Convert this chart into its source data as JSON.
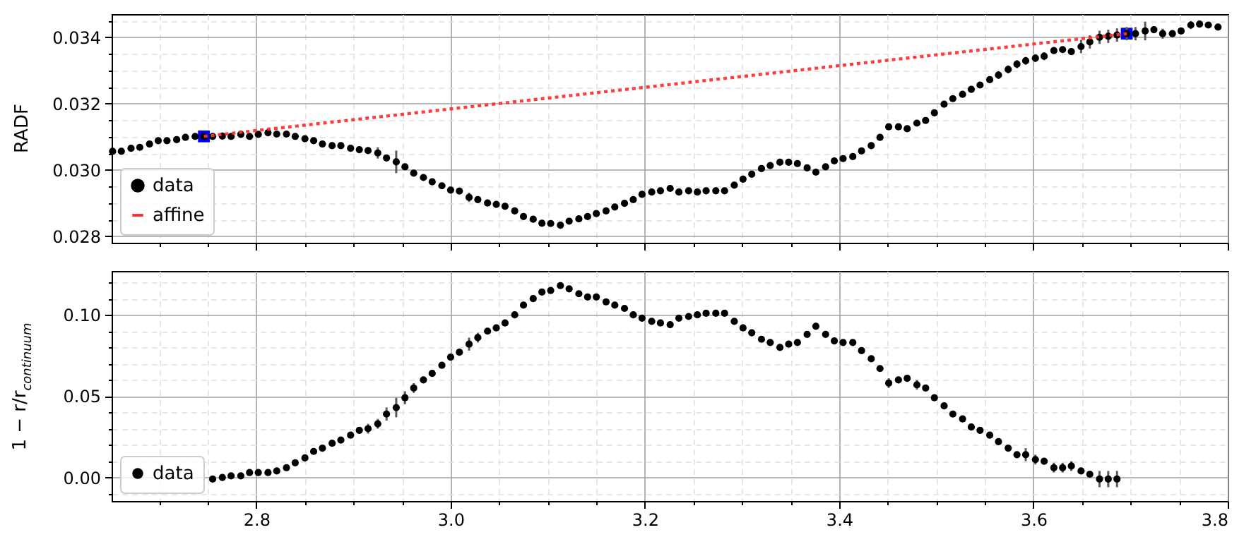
{
  "chart_data": [
    {
      "type": "scatter",
      "ylabel": "RADF",
      "xlim": [
        2.651,
        3.8
      ],
      "ylim": [
        0.0278,
        0.0347
      ],
      "xticks": [
        {
          "value": 2.7,
          "label": null
        },
        {
          "value": 2.75,
          "label": null
        },
        2.8,
        {
          "value": 2.85,
          "label": null
        },
        {
          "value": 2.9,
          "label": null
        },
        {
          "value": 2.95,
          "label": null
        },
        3,
        {
          "value": 3.05,
          "label": null
        },
        {
          "value": 3.1,
          "label": null
        },
        {
          "value": 3.15,
          "label": null
        },
        3.2,
        {
          "value": 3.25,
          "label": null
        },
        {
          "value": 3.3,
          "label": null
        },
        {
          "value": 3.35,
          "label": null
        },
        3.4,
        {
          "value": 3.45,
          "label": null
        },
        {
          "value": 3.5,
          "label": null
        },
        {
          "value": 3.55,
          "label": null
        },
        3.6,
        {
          "value": 3.65,
          "label": null
        },
        {
          "value": 3.7,
          "label": null
        },
        {
          "value": 3.75,
          "label": null
        },
        3.8
      ],
      "yticks": [
        0.028,
        {
          "value": 0.0285,
          "label": null
        },
        {
          "value": 0.029,
          "label": null
        },
        {
          "value": 0.0295,
          "label": null
        },
        {
          "value": 0.03,
          "label": "0.030"
        },
        {
          "value": 0.0305,
          "label": null
        },
        {
          "value": 0.031,
          "label": null
        },
        {
          "value": 0.0315,
          "label": null
        },
        0.032,
        {
          "value": 0.0325,
          "label": null
        },
        {
          "value": 0.033,
          "label": null
        },
        {
          "value": 0.0335,
          "label": null
        },
        0.034,
        {
          "value": 0.0345,
          "label": null
        }
      ],
      "tick_labels": "y",
      "grid": true,
      "legend": "bottom left",
      "series": [
        {
          "name": "data",
          "color": "#000000",
          "marker": "circle",
          "x": [
            2.652,
            2.661,
            2.671,
            2.68,
            2.69,
            2.699,
            2.708,
            2.718,
            2.727,
            2.737,
            2.746,
            2.755,
            2.765,
            2.774,
            2.784,
            2.793,
            2.802,
            2.812,
            2.821,
            2.831,
            2.84,
            2.85,
            2.859,
            2.868,
            2.878,
            2.887,
            2.897,
            2.906,
            2.915,
            2.925,
            2.934,
            2.944,
            2.953,
            2.962,
            2.972,
            2.981,
            2.991,
            3.0,
            3.009,
            3.019,
            3.028,
            3.038,
            3.047,
            3.056,
            3.066,
            3.075,
            3.085,
            3.094,
            3.103,
            3.113,
            3.122,
            3.132,
            3.141,
            3.15,
            3.16,
            3.169,
            3.179,
            3.188,
            3.197,
            3.207,
            3.216,
            3.226,
            3.235,
            3.245,
            3.254,
            3.263,
            3.273,
            3.282,
            3.292,
            3.301,
            3.31,
            3.32,
            3.329,
            3.339,
            3.348,
            3.357,
            3.367,
            3.376,
            3.386,
            3.395,
            3.404,
            3.414,
            3.423,
            3.433,
            3.442,
            3.451,
            3.461,
            3.47,
            3.48,
            3.489,
            3.498,
            3.508,
            3.517,
            3.527,
            3.536,
            3.545,
            3.555,
            3.564,
            3.574,
            3.583,
            3.592,
            3.602,
            3.611,
            3.621,
            3.63,
            3.639,
            3.649,
            3.658,
            3.668,
            3.677,
            3.686,
            3.696,
            3.705,
            3.715,
            3.724,
            3.733,
            3.743,
            3.752,
            3.762,
            3.771,
            3.78,
            3.79
          ],
          "values": [
            0.03056,
            0.03056,
            0.03065,
            0.03068,
            0.03078,
            0.03088,
            0.03088,
            0.03091,
            0.03098,
            0.03101,
            0.03101,
            0.03101,
            0.03102,
            0.03101,
            0.03107,
            0.03101,
            0.03107,
            0.03112,
            0.03108,
            0.03108,
            0.03101,
            0.03094,
            0.03088,
            0.03078,
            0.03073,
            0.03073,
            0.03065,
            0.03061,
            0.03058,
            0.03051,
            0.03036,
            0.03024,
            0.03009,
            0.0299,
            0.02977,
            0.02964,
            0.02952,
            0.02939,
            0.02936,
            0.02917,
            0.0291,
            0.029,
            0.02896,
            0.0289,
            0.02876,
            0.02859,
            0.02851,
            0.02839,
            0.02838,
            0.02833,
            0.02845,
            0.02852,
            0.02859,
            0.02868,
            0.02876,
            0.02888,
            0.02899,
            0.0291,
            0.02926,
            0.02933,
            0.02937,
            0.02944,
            0.02933,
            0.02937,
            0.02933,
            0.02937,
            0.02937,
            0.02937,
            0.02954,
            0.02972,
            0.02987,
            0.03004,
            0.03013,
            0.03023,
            0.03023,
            0.03019,
            0.03006,
            0.02993,
            0.03009,
            0.03027,
            0.03034,
            0.0304,
            0.03057,
            0.03073,
            0.03098,
            0.0313,
            0.0313,
            0.03124,
            0.03141,
            0.03149,
            0.03172,
            0.03198,
            0.03215,
            0.03228,
            0.03243,
            0.03256,
            0.03272,
            0.03286,
            0.03303,
            0.03319,
            0.03329,
            0.03337,
            0.03343,
            0.0336,
            0.03363,
            0.03357,
            0.03372,
            0.03386,
            0.034,
            0.03403,
            0.03407,
            0.03411,
            0.03411,
            0.03419,
            0.03423,
            0.03411,
            0.03411,
            0.03419,
            0.03437,
            0.0344,
            0.03437,
            0.03431
          ],
          "errors": [
            null,
            null,
            null,
            null,
            null,
            null,
            null,
            null,
            null,
            null,
            null,
            null,
            null,
            null,
            null,
            null,
            null,
            null,
            null,
            null,
            null,
            null,
            null,
            null,
            null,
            null,
            null,
            null,
            null,
            0.00017,
            null,
            0.00034,
            null,
            null,
            null,
            null,
            null,
            null,
            null,
            0.00014,
            0.0001,
            null,
            null,
            null,
            null,
            null,
            null,
            null,
            null,
            null,
            null,
            null,
            null,
            null,
            null,
            null,
            null,
            null,
            null,
            null,
            null,
            null,
            null,
            null,
            null,
            null,
            null,
            null,
            null,
            null,
            null,
            null,
            null,
            null,
            null,
            null,
            null,
            null,
            null,
            null,
            null,
            null,
            null,
            null,
            null,
            null,
            null,
            null,
            null,
            null,
            null,
            null,
            null,
            null,
            null,
            null,
            null,
            0.00012,
            0.00012,
            0.00012,
            0.00012,
            0.00012,
            0.00012,
            null,
            null,
            null,
            0.0002,
            0.0002,
            0.0002,
            0.0002,
            0.0002,
            0.0002,
            0.0002,
            0.00028,
            null,
            0.00015,
            null,
            null,
            0.00012,
            null,
            null,
            null
          ]
        },
        {
          "name": "affine",
          "type": "line",
          "color": "#ff3030",
          "line_style": "dotted",
          "x": [
            2.746,
            3.696
          ],
          "values": [
            0.03101,
            0.03411
          ]
        },
        {
          "color": "#0000ff",
          "marker": "square",
          "x": [
            2.746,
            3.696
          ],
          "values": [
            0.03101,
            0.03411
          ]
        }
      ]
    },
    {
      "type": "scatter",
      "ylabel": "1 − r/r$_{continuum}$",
      "xlim": [
        2.651,
        3.8
      ],
      "ylim": [
        -0.0145,
        0.127
      ],
      "xticks": [
        {
          "value": 2.7,
          "label": null
        },
        {
          "value": 2.75,
          "label": null
        },
        2.8,
        {
          "value": 2.85,
          "label": null
        },
        {
          "value": 2.9,
          "label": null
        },
        {
          "value": 2.95,
          "label": null
        },
        {
          "value": 3,
          "label": "3.0"
        },
        {
          "value": 3.05,
          "label": null
        },
        {
          "value": 3.1,
          "label": null
        },
        {
          "value": 3.15,
          "label": null
        },
        3.2,
        {
          "value": 3.25,
          "label": null
        },
        {
          "value": 3.3,
          "label": null
        },
        {
          "value": 3.35,
          "label": null
        },
        3.4,
        {
          "value": 3.45,
          "label": null
        },
        {
          "value": 3.5,
          "label": null
        },
        {
          "value": 3.55,
          "label": null
        },
        3.6,
        {
          "value": 3.65,
          "label": null
        },
        {
          "value": 3.7,
          "label": null
        },
        {
          "value": 3.75,
          "label": null
        },
        3.8
      ],
      "yticks": [
        {
          "value": -0.01,
          "label": null
        },
        {
          "value": 0,
          "label": "0.00"
        },
        {
          "value": 0.01,
          "label": null
        },
        {
          "value": 0.02,
          "label": null
        },
        {
          "value": 0.03,
          "label": null
        },
        {
          "value": 0.04,
          "label": null
        },
        0.05,
        {
          "value": 0.06,
          "label": null
        },
        {
          "value": 0.07,
          "label": null
        },
        {
          "value": 0.08,
          "label": null
        },
        {
          "value": 0.09,
          "label": null
        },
        {
          "value": 0.1,
          "label": "0.10"
        },
        {
          "value": 0.11,
          "label": null
        },
        {
          "value": 0.12,
          "label": null
        }
      ],
      "grid": true,
      "legend": "bottom left",
      "series": [
        {
          "name": "data",
          "color": "#000000",
          "marker": "circle",
          "x": [
            2.755,
            2.765,
            2.774,
            2.784,
            2.793,
            2.802,
            2.812,
            2.821,
            2.831,
            2.84,
            2.85,
            2.859,
            2.868,
            2.878,
            2.887,
            2.897,
            2.906,
            2.915,
            2.925,
            2.934,
            2.944,
            2.953,
            2.962,
            2.972,
            2.981,
            2.991,
            3.0,
            3.009,
            3.019,
            3.028,
            3.038,
            3.047,
            3.056,
            3.066,
            3.075,
            3.085,
            3.094,
            3.103,
            3.113,
            3.122,
            3.132,
            3.141,
            3.15,
            3.16,
            3.169,
            3.179,
            3.188,
            3.197,
            3.207,
            3.216,
            3.226,
            3.235,
            3.245,
            3.254,
            3.263,
            3.273,
            3.282,
            3.292,
            3.301,
            3.31,
            3.32,
            3.329,
            3.339,
            3.348,
            3.357,
            3.367,
            3.376,
            3.386,
            3.395,
            3.404,
            3.414,
            3.423,
            3.433,
            3.442,
            3.451,
            3.461,
            3.47,
            3.48,
            3.489,
            3.498,
            3.508,
            3.517,
            3.527,
            3.536,
            3.545,
            3.555,
            3.564,
            3.574,
            3.583,
            3.592,
            3.602,
            3.611,
            3.621,
            3.63,
            3.639,
            3.649,
            3.658,
            3.668,
            3.677,
            3.686
          ],
          "values": [
            -0.001,
            0,
            0.001,
            0.001,
            0.003,
            0.003,
            0.003,
            0.004,
            0.006,
            0.009,
            0.012,
            0.016,
            0.018,
            0.021,
            0.023,
            0.026,
            0.029,
            0.03,
            0.033,
            0.039,
            0.043,
            0.049,
            0.055,
            0.06,
            0.064,
            0.069,
            0.074,
            0.077,
            0.082,
            0.086,
            0.09,
            0.092,
            0.095,
            0.1,
            0.106,
            0.11,
            0.114,
            0.115,
            0.118,
            0.116,
            0.113,
            0.111,
            0.111,
            0.108,
            0.106,
            0.104,
            0.1,
            0.098,
            0.096,
            0.095,
            0.094,
            0.098,
            0.099,
            0.1,
            0.101,
            0.101,
            0.101,
            0.096,
            0.092,
            0.089,
            0.085,
            0.083,
            0.08,
            0.082,
            0.083,
            0.088,
            0.093,
            0.088,
            0.084,
            0.083,
            0.083,
            0.078,
            0.073,
            0.067,
            0.058,
            0.06,
            0.061,
            0.057,
            0.055,
            0.049,
            0.044,
            0.039,
            0.036,
            0.031,
            0.029,
            0.026,
            0.022,
            0.018,
            0.014,
            0.014,
            0.011,
            0.01,
            0.006,
            0.006,
            0.007,
            0.004,
            0.002,
            -0.001,
            -0.001,
            -0.001
          ],
          "errors": [
            null,
            null,
            null,
            null,
            null,
            null,
            null,
            null,
            null,
            null,
            null,
            null,
            null,
            null,
            null,
            null,
            null,
            0.003,
            0.003,
            0.004,
            0.006,
            0.004,
            0.003,
            null,
            null,
            null,
            null,
            null,
            0.004,
            0.003,
            null,
            null,
            null,
            null,
            null,
            null,
            null,
            null,
            null,
            null,
            null,
            null,
            null,
            null,
            null,
            null,
            null,
            null,
            null,
            null,
            null,
            null,
            null,
            null,
            null,
            null,
            null,
            null,
            null,
            null,
            null,
            null,
            null,
            null,
            null,
            null,
            null,
            null,
            null,
            null,
            null,
            null,
            null,
            null,
            0.003,
            null,
            null,
            0.003,
            null,
            null,
            null,
            null,
            null,
            null,
            null,
            null,
            null,
            null,
            null,
            0.004,
            0.003,
            null,
            0.003,
            0.003,
            0.003,
            null,
            null,
            0.005,
            0.005,
            0.005
          ]
        }
      ]
    }
  ]
}
